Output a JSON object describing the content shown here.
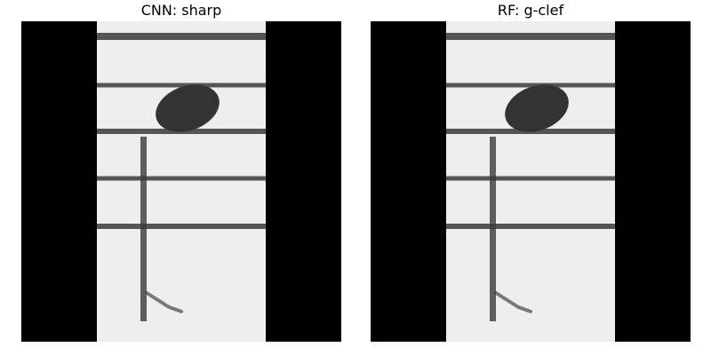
{
  "panels": [
    {
      "id": "left",
      "title": "CNN: sharp"
    },
    {
      "id": "right",
      "title": "RF: g-clef"
    }
  ],
  "colors": {
    "background": "#ffffff",
    "padding": "#000000",
    "paper": "#eeeeee",
    "ink": "#3a3a3a",
    "notehead": "#333333"
  }
}
